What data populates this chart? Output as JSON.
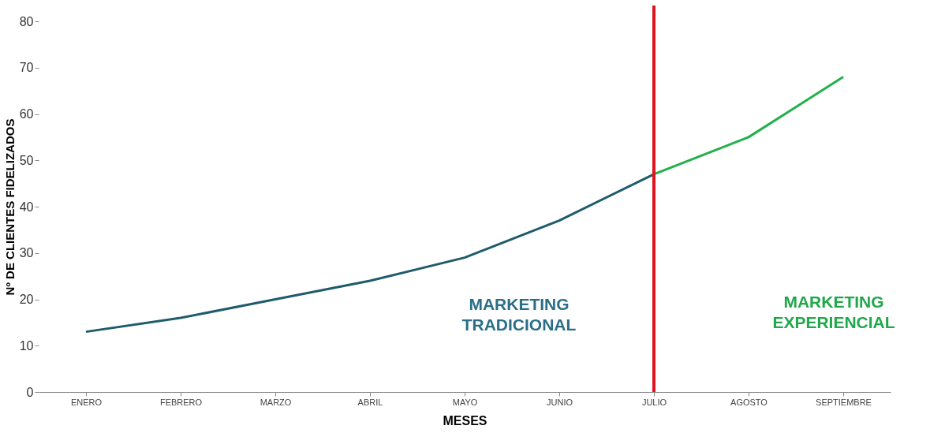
{
  "chart_data": {
    "type": "line",
    "xlabel": "MESES",
    "ylabel": "Nº DE CLIENTES FIDELIZADOS",
    "categories": [
      "ENERO",
      "FEBRERO",
      "MARZO",
      "ABRIL",
      "MAYO",
      "JUNIO",
      "JULIO",
      "AGOSTO",
      "SEPTIEMBRE"
    ],
    "series": [
      {
        "color": "#1f5c6b",
        "values": [
          13,
          16,
          20,
          24,
          29,
          37,
          47,
          null,
          null
        ]
      },
      {
        "color": "#22b04b",
        "values": [
          null,
          null,
          null,
          null,
          null,
          null,
          47,
          55,
          68
        ]
      }
    ],
    "ylim": [
      0,
      80
    ],
    "yticks": [
      0,
      10,
      20,
      30,
      40,
      50,
      60,
      70,
      80
    ],
    "grid": false,
    "marker": "none",
    "line_style": "solid",
    "ref_lines": [
      {
        "axis": "x",
        "value": "JULIO",
        "color": "#e0141e",
        "line_style": "solid"
      }
    ],
    "annotations": [
      "MARKETING TRADICIONAL",
      "MARKETING EXPERIENCIAL"
    ]
  }
}
